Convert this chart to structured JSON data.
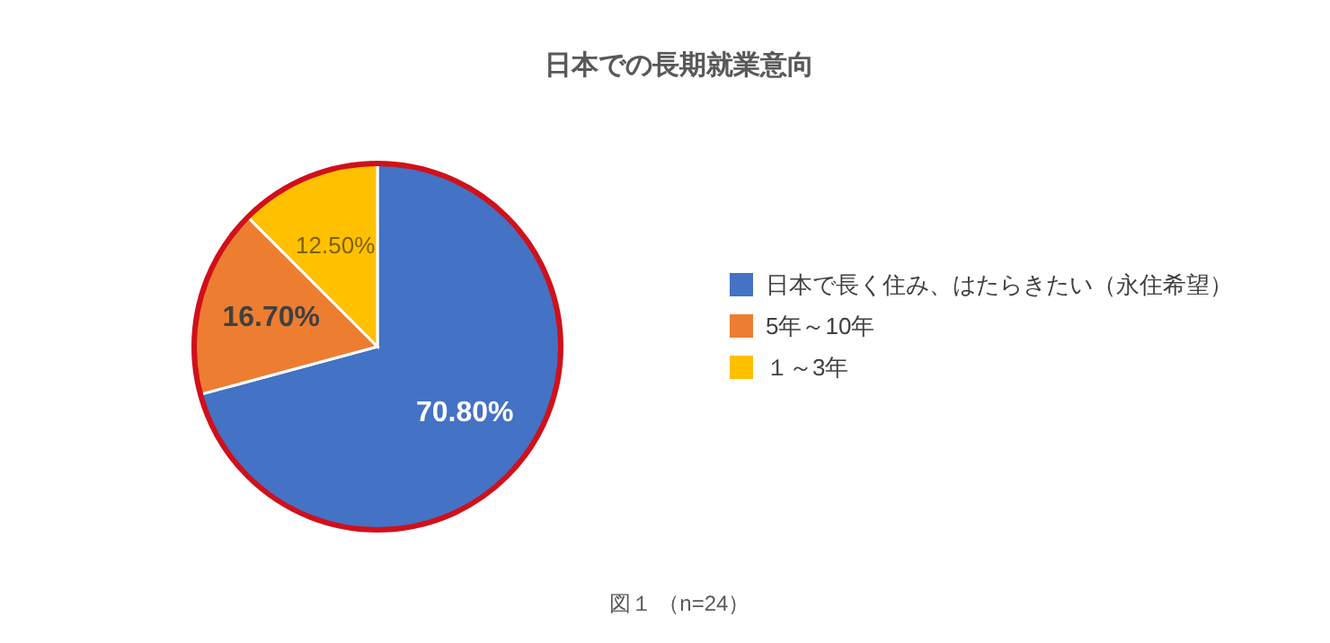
{
  "chart_data": {
    "type": "pie",
    "title": "日本での長期就業意向",
    "categories": [
      "日本で長く住み、はたらきたい（永住希望）",
      "5年～10年",
      "１～3年"
    ],
    "values": [
      70.8,
      16.7,
      12.5
    ],
    "value_labels": [
      "70.80%",
      "16.70%",
      "12.50%"
    ],
    "colors": [
      "#4472c4",
      "#ed7d31",
      "#ffc000"
    ],
    "legend": "right",
    "annotations": [
      "図１ （n=24）"
    ]
  }
}
